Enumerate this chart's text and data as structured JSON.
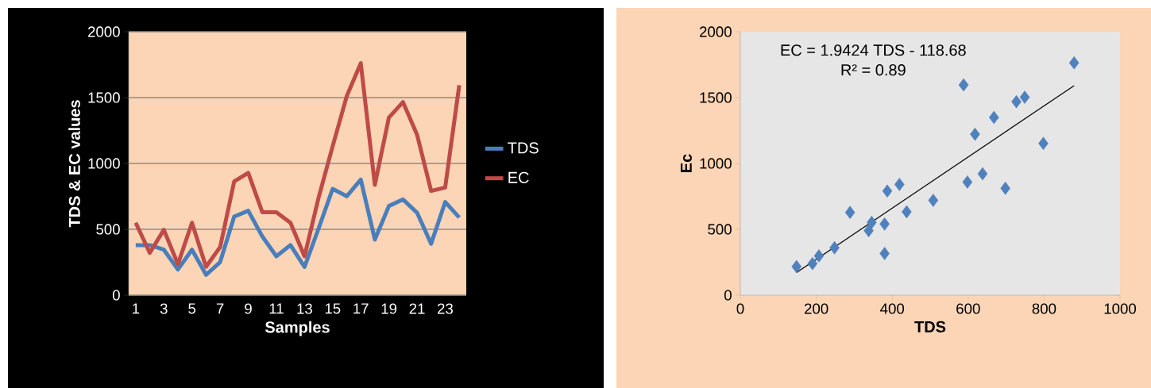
{
  "chart_data": [
    {
      "type": "line",
      "xlabel": "Samples",
      "ylabel": "TDS & EC values",
      "categories": [
        "1",
        null,
        "3",
        null,
        "5",
        null,
        "7",
        null,
        "9",
        null,
        "11",
        null,
        "13",
        null,
        "15",
        null,
        "17",
        null,
        "19",
        null,
        "21",
        null,
        "23",
        null
      ],
      "series": [
        {
          "name": "TDS",
          "color": "#4a7ebb",
          "values": [
            380,
            380,
            345,
            195,
            345,
            155,
            251,
            596,
            641,
            446,
            295,
            380,
            215,
            506,
            807,
            751,
            877,
            422,
            677,
            727,
            626,
            390,
            707,
            590
          ]
        },
        {
          "name": "EC",
          "color": "#be4b48",
          "values": [
            550,
            321,
            496,
            235,
            550,
            215,
            365,
            863,
            928,
            630,
            630,
            550,
            295,
            740,
            1130,
            1510,
            1761,
            837,
            1349,
            1466,
            1219,
            791,
            817,
            1594
          ]
        }
      ],
      "ylim": [
        0,
        2000
      ],
      "yticks": [
        0,
        500,
        1000,
        1500,
        2000
      ],
      "grid": "y",
      "legend": "right"
    },
    {
      "type": "scatter",
      "xlabel": "TDS",
      "ylabel": "Ec",
      "series": [
        {
          "color": "#4f81bd",
          "marker": "diamond",
          "x": [
            148,
            190,
            207,
            248,
            289,
            338,
            346,
            380,
            380,
            387,
            419,
            438,
            508,
            588,
            598,
            618,
            638,
            668,
            698,
            727,
            749,
            798,
            879
          ],
          "values": [
            217,
            240,
            298,
            360,
            628,
            490,
            552,
            540,
            316,
            790,
            841,
            633,
            720,
            1596,
            859,
            1222,
            921,
            1349,
            811,
            1469,
            1503,
            1152,
            1764
          ]
        },
        {
          "type": "line",
          "color": "#000000",
          "x": [
            148,
            879
          ],
          "values": [
            171,
            1591
          ]
        }
      ],
      "xlim": [
        0,
        1000
      ],
      "xticks": [
        0,
        200,
        400,
        600,
        800,
        1000
      ],
      "ylim": [
        0,
        2000
      ],
      "yticks": [
        0,
        500,
        1000,
        1500,
        2000
      ],
      "annotations": [
        "EC = 1.9424 TDS - 118.68",
        "R² = 0.89"
      ]
    }
  ]
}
